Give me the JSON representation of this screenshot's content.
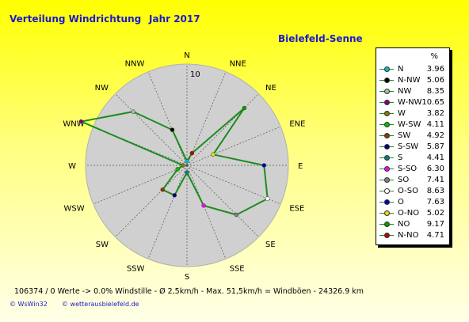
{
  "header": {
    "title": "Verteilung Windrichtung",
    "year": "Jahr 2017",
    "station": "Bielefeld-Senne"
  },
  "colors": {
    "title": "#1b1bcc",
    "plot_disc": "#d0d0d0",
    "series_line": "#1e8c1e"
  },
  "chart_data": {
    "type": "radar",
    "title": "Verteilung Windrichtung",
    "radial_max": 10,
    "radial_label": "10",
    "grid": true,
    "legend_position": "right",
    "legend_header": "%",
    "directions": [
      "N",
      "NNE",
      "NE",
      "ENE",
      "E",
      "ESE",
      "SE",
      "SSE",
      "S",
      "SSW",
      "SW",
      "WSW",
      "W",
      "WNW",
      "NW",
      "NNW"
    ],
    "series": [
      {
        "name": "N",
        "value": 3.96,
        "color": "#00c0c0"
      },
      {
        "name": "N-NW",
        "value": 5.06,
        "color": "#000000"
      },
      {
        "name": "NW",
        "value": 8.35,
        "color": "#a0c0a0"
      },
      {
        "name": "W-NW",
        "value": 10.65,
        "color": "#800080"
      },
      {
        "name": "W",
        "value": 3.82,
        "color": "#808000"
      },
      {
        "name": "W-SW",
        "value": 4.11,
        "color": "#00c000"
      },
      {
        "name": "SW",
        "value": 4.92,
        "color": "#804000"
      },
      {
        "name": "S-SW",
        "value": 5.87,
        "color": "#000080"
      },
      {
        "name": "S",
        "value": 4.41,
        "color": "#008080"
      },
      {
        "name": "S-SO",
        "value": 6.3,
        "color": "#ff00ff"
      },
      {
        "name": "SO",
        "value": 7.41,
        "color": "#808080"
      },
      {
        "name": "O-SO",
        "value": 8.63,
        "color": "#ffffff"
      },
      {
        "name": "O",
        "value": 7.63,
        "color": "#0000c0"
      },
      {
        "name": "O-NO",
        "value": 5.02,
        "color": "#e0e000"
      },
      {
        "name": "NO",
        "value": 9.17,
        "color": "#00a000"
      },
      {
        "name": "N-NO",
        "value": 4.71,
        "color": "#c00000"
      }
    ],
    "polygon_values": {
      "N": 0.4,
      "NNE": 1.3,
      "NE": 8.0,
      "ENE": 2.8,
      "E": 7.6,
      "ESE": 8.6,
      "SE": 6.9,
      "SSE": 4.3,
      "S": 0.7,
      "SSW": 3.2,
      "SW": 3.4,
      "WSW": 1.0,
      "W": 0.4,
      "WNW": 11.3,
      "NW": 7.5,
      "NNW": 3.8
    }
  },
  "stats": "106374 / 0 Werte  -> 0.0% Windstille    -    Ø 2,5km/h   -   Max. 51,5km/h = Windböen    -    24326.9 km",
  "footer": {
    "credit_left": "© WsWin32",
    "credit_right": "© wetterausbielefeld.de"
  }
}
